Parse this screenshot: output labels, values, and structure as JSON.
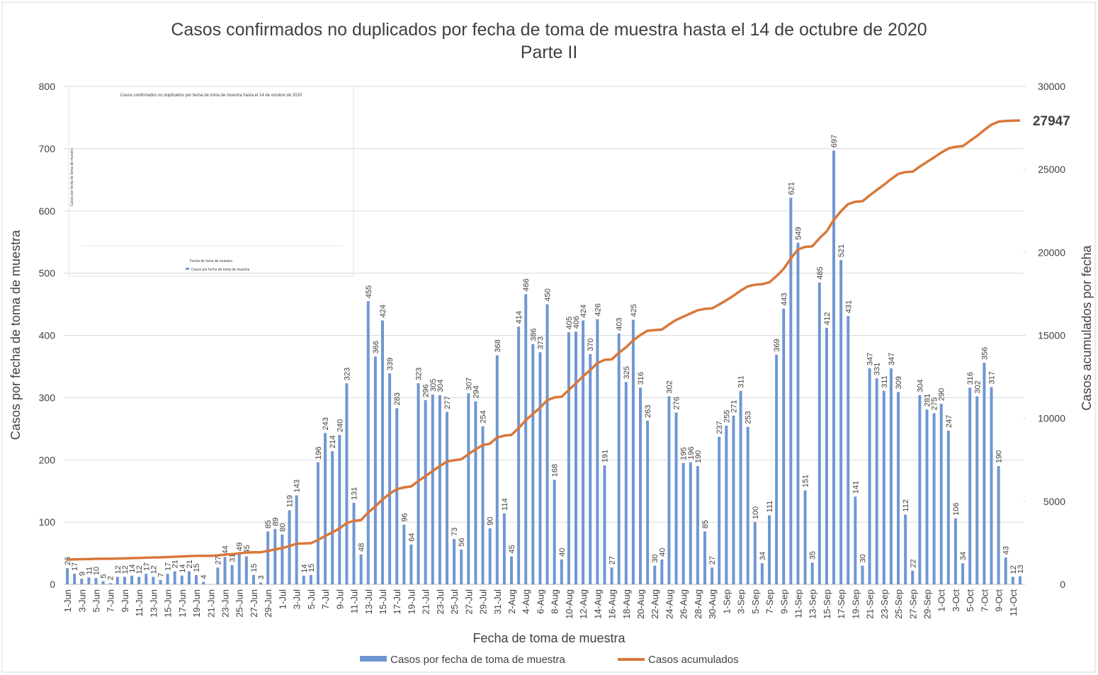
{
  "chart_data": {
    "type": "bar",
    "title": "Casos confirmados no duplicados por fecha de toma de muestra hasta el 14 de octubre de 2020",
    "subtitle": "Parte II",
    "x_label": "Fecha de toma de muestra",
    "y_label": "Casos por fecha de toma de muestra",
    "y2_label": "Casos acumulados por fecha",
    "categories": [
      "1-Jun",
      null,
      "3-Jun",
      null,
      "5-Jun",
      null,
      "7-Jun",
      null,
      "9-Jun",
      null,
      "11-Jun",
      null,
      "13-Jun",
      null,
      "15-Jun",
      null,
      "17-Jun",
      null,
      "19-Jun",
      null,
      "21-Jun",
      null,
      "23-Jun",
      null,
      "25-Jun",
      null,
      "27-Jun",
      null,
      "29-Jun",
      null,
      "1-Jul",
      null,
      "3-Jul",
      null,
      "5-Jul",
      null,
      "7-Jul",
      null,
      "9-Jul",
      null,
      "11-Jul",
      null,
      "13-Jul",
      null,
      "15-Jul",
      null,
      "17-Jul",
      null,
      "19-Jul",
      null,
      "21-Jul",
      null,
      "23-Jul",
      null,
      "25-Jul",
      null,
      "27-Jul",
      null,
      "29-Jul",
      null,
      "31-Jul",
      null,
      "2-Aug",
      null,
      "4-Aug",
      null,
      "6-Aug",
      null,
      "8-Aug",
      null,
      "10-Aug",
      null,
      "12-Aug",
      null,
      "14-Aug",
      null,
      "16-Aug",
      null,
      "18-Aug",
      null,
      "20-Aug",
      null,
      "22-Aug",
      null,
      "24-Aug",
      null,
      "26-Aug",
      null,
      "28-Aug",
      null,
      "30-Aug",
      null,
      "1-Sep",
      null,
      "3-Sep",
      null,
      "5-Sep",
      null,
      "7-Sep",
      null,
      "9-Sep",
      null,
      "11-Sep",
      null,
      "13-Sep",
      null,
      "15-Sep",
      null,
      "17-Sep",
      null,
      "19-Sep",
      null,
      "21-Sep",
      null,
      "23-Sep",
      null,
      "25-Sep",
      null,
      "27-Sep",
      null,
      "29-Sep",
      null,
      "1-Oct",
      null,
      "3-Oct",
      null,
      "5-Oct",
      null,
      "7-Oct",
      null,
      "9-Oct",
      null,
      "11-Oct",
      null
    ],
    "series": [
      {
        "name": "Casos por fecha de toma de muestra",
        "color": "#6f97d2",
        "values": [
          26,
          17,
          9,
          11,
          10,
          5,
          2,
          12,
          12,
          14,
          12,
          17,
          12,
          7,
          17,
          21,
          14,
          21,
          15,
          4,
          null,
          27,
          44,
          31,
          49,
          45,
          15,
          3,
          85,
          89,
          80,
          119,
          143,
          14,
          15,
          196,
          243,
          214,
          240,
          323,
          131,
          48,
          455,
          366,
          424,
          339,
          283,
          96,
          64,
          323,
          296,
          305,
          304,
          277,
          73,
          56,
          307,
          294,
          254,
          90,
          368,
          114,
          45,
          414,
          466,
          386,
          373,
          450,
          168,
          40,
          405,
          406,
          424,
          370,
          426,
          191,
          27,
          403,
          325,
          425,
          316,
          263,
          30,
          40,
          302,
          276,
          195,
          196,
          190,
          85,
          27,
          237,
          255,
          271,
          311,
          253,
          100,
          34,
          111,
          369,
          443,
          621,
          549,
          151,
          35,
          485,
          412,
          697,
          521,
          431,
          141,
          30,
          347,
          331,
          311,
          347,
          309,
          112,
          22,
          304,
          281,
          275,
          290,
          247,
          106,
          34,
          316,
          302,
          356,
          317,
          190,
          43,
          12,
          13
        ]
      },
      {
        "name": "Casos acumulados",
        "color": "#d9773a",
        "axis": "y2",
        "values": [
          1487,
          1504,
          1513,
          1524,
          1534,
          1539,
          1541,
          1553,
          1565,
          1579,
          1591,
          1608,
          1620,
          1627,
          1644,
          1665,
          1679,
          1700,
          1715,
          1719,
          1719,
          1746,
          1790,
          1821,
          1870,
          1915,
          1930,
          1933,
          2018,
          2107,
          2187,
          2306,
          2449,
          2463,
          2478,
          2674,
          2917,
          3131,
          3371,
          3694,
          3825,
          3873,
          4328,
          4694,
          5118,
          5457,
          5740,
          5836,
          5900,
          6223,
          6519,
          6824,
          7128,
          7405,
          7478,
          7534,
          7841,
          8135,
          8389,
          8479,
          8847,
          8961,
          9006,
          9420,
          9886,
          10272,
          10645,
          11095,
          11263,
          11303,
          11708,
          12114,
          12538,
          12908,
          13334,
          13525,
          13552,
          13955,
          14280,
          14705,
          15021,
          15284,
          15314,
          15354,
          15656,
          15932,
          16127,
          16323,
          16513,
          16598,
          16625,
          16862,
          17117,
          17388,
          17699,
          17952,
          18052,
          18086,
          18197,
          18566,
          19009,
          19630,
          20179,
          20330,
          20365,
          20850,
          21262,
          21959,
          22480,
          22911,
          23052,
          23082,
          23429,
          23760,
          24071,
          24418,
          24727,
          24839,
          24861,
          25165,
          25446,
          25721,
          26011,
          26258,
          26364,
          26398,
          26714,
          27016,
          27372,
          27689,
          27879,
          27922,
          27934,
          27947
        ]
      }
    ],
    "ylim": [
      0,
      800
    ],
    "yticks": [
      0,
      100,
      200,
      300,
      400,
      500,
      600,
      700,
      800
    ],
    "y2lim": [
      0,
      30000
    ],
    "y2ticks": [
      0,
      5000,
      10000,
      15000,
      20000,
      25000,
      30000
    ],
    "grid": true,
    "legend": "bottom",
    "inset": {
      "title": "Casos confirmados no duplicados por fecha de toma de muestra hasta el 14 de octubre de 2020",
      "x_label": "Fecha de toma de muestra",
      "y_label": "Casos por fecha de toma de muestra",
      "legend": "Casos por fecha de toma de muestra"
    }
  }
}
